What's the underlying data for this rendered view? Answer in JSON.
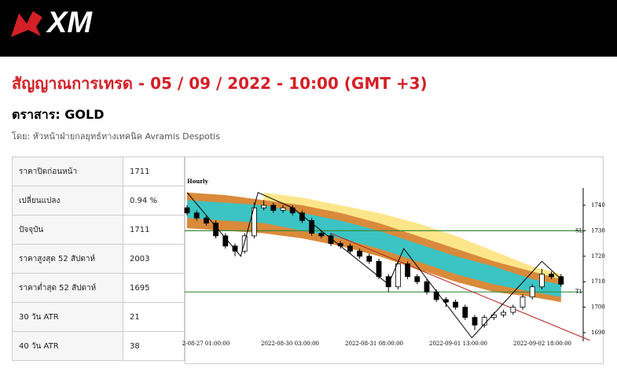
{
  "header": {
    "logo": "XM"
  },
  "title": "สัญญาณการเทรด - 05 / 09 / 2022 - 10:00 (GMT +3)",
  "instrument": "ตราสาร: GOLD",
  "author": "โดย: หัวหน้าฝ่ายกลยุทธ์ทางเทคนิค Avramis Despotis",
  "table": {
    "rows": [
      [
        "ราคาปิดก่อนหน้า",
        "1711"
      ],
      [
        "เปลี่ยนแปลง",
        "0.94 %"
      ],
      [
        "ปัจจุบัน",
        "1711"
      ],
      [
        "ราคาสูงสุด 52 สัปดาห์",
        "2003"
      ],
      [
        "ราคาต่ำสุด 52 สัปดาห์",
        "1695"
      ],
      [
        "30 วัน ATR",
        "21"
      ],
      [
        "40 วัน ATR",
        "38"
      ]
    ]
  },
  "chart_data": {
    "type": "candlestick",
    "label": "Hourly",
    "x_labels": [
      "2-08-27 01:00:00",
      "2022-08-30 03:00:00",
      "2022-08-31 08:00:00",
      "2022-09-01 13:00:00",
      "2022-09-02 18:00:00"
    ],
    "ylim": [
      1688,
      1745
    ],
    "yticks": [
      1690,
      1700,
      1710,
      1720,
      1730,
      1740
    ],
    "open": [
      1739,
      1737,
      1735,
      1733,
      1728,
      1724,
      1722,
      1728,
      1739,
      1740,
      1738,
      1739,
      1737,
      1734,
      1729,
      1728,
      1725,
      1724,
      1722,
      1720,
      1718,
      1712,
      1708,
      1717,
      1712,
      1710,
      1706,
      1703,
      1702,
      1700,
      1696,
      1693,
      1696,
      1697,
      1698,
      1700,
      1704,
      1708,
      1713,
      1712
    ],
    "high": [
      1740,
      1738,
      1736,
      1734,
      1729,
      1725,
      1729,
      1741,
      1742,
      1741,
      1740,
      1740,
      1738,
      1735,
      1730,
      1729,
      1726,
      1725,
      1723,
      1721,
      1719,
      1713,
      1718,
      1718,
      1713,
      1711,
      1707,
      1704,
      1703,
      1701,
      1697,
      1697,
      1698,
      1699,
      1701,
      1705,
      1709,
      1715,
      1714,
      1713
    ],
    "low": [
      1736,
      1734,
      1732,
      1727,
      1723,
      1720,
      1721,
      1727,
      1738,
      1737,
      1737,
      1736,
      1733,
      1728,
      1727,
      1724,
      1723,
      1721,
      1719,
      1717,
      1711,
      1706,
      1707,
      1711,
      1709,
      1705,
      1702,
      1700,
      1699,
      1695,
      1691,
      1692,
      1695,
      1696,
      1697,
      1699,
      1703,
      1707,
      1711,
      1708
    ],
    "close": [
      1737,
      1735,
      1733,
      1728,
      1724,
      1722,
      1728,
      1739,
      1740,
      1738,
      1739,
      1737,
      1734,
      1729,
      1728,
      1725,
      1724,
      1722,
      1720,
      1718,
      1712,
      1708,
      1717,
      1712,
      1710,
      1706,
      1703,
      1702,
      1700,
      1696,
      1693,
      1696,
      1697,
      1698,
      1700,
      1704,
      1708,
      1713,
      1712,
      1709
    ],
    "band_x": [
      0,
      4,
      8,
      12,
      16,
      20,
      24,
      28,
      32,
      36,
      39
    ],
    "bands": [
      {
        "color": "#fde68a",
        "upper": [
          null,
          null,
          1745,
          1743,
          1740,
          1737,
          1733,
          1728,
          1722,
          1716,
          1713
        ],
        "lower": [
          null,
          null,
          1739,
          1737,
          1734,
          1730,
          1726,
          1721,
          1715,
          1710,
          1708
        ]
      },
      {
        "color": "#d98a3a",
        "upper": [
          1745,
          1744,
          1742,
          1740,
          1737,
          1733,
          1728,
          1723,
          1718,
          1714,
          1711
        ],
        "lower": [
          1731,
          1730,
          1729,
          1727,
          1724,
          1720,
          1715,
          1710,
          1706,
          1704,
          1702
        ]
      },
      {
        "color": "#3cc4c4",
        "upper": [
          1742,
          1741,
          1740,
          1737,
          1734,
          1730,
          1725,
          1720,
          1716,
          1711,
          1709
        ],
        "lower": [
          1735,
          1734,
          1733,
          1730,
          1727,
          1723,
          1718,
          1713,
          1709,
          1706,
          1704
        ]
      }
    ],
    "levels": [
      {
        "label": "SL",
        "value": 1730,
        "color": "#3a8a3a"
      },
      {
        "label": "T1",
        "value": 1706,
        "color": "#3a8a3a"
      }
    ],
    "zigzag": {
      "x": [
        0,
        5.6,
        7.4,
        11,
        21,
        22.6,
        29.7,
        37,
        39
      ],
      "values": [
        1745,
        1720,
        1745,
        1739,
        1709,
        1723,
        1688,
        1718,
        1711
      ]
    },
    "trendline": {
      "x": [
        15,
        42
      ],
      "values": [
        1729,
        1687
      ],
      "color": "#b22222"
    }
  }
}
